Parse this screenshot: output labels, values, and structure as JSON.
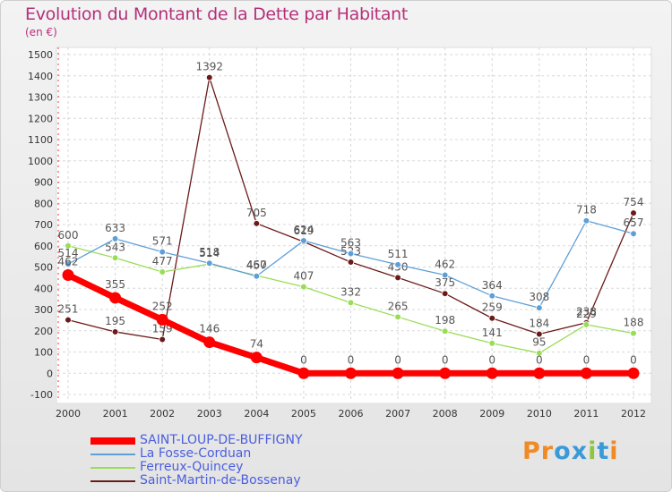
{
  "chart_data": {
    "type": "line",
    "title": "Evolution du Montant de la Dette par Habitant",
    "subtitle": "(en €)",
    "xlabel": "",
    "ylabel": "",
    "x": [
      "2000",
      "2001",
      "2002",
      "2003",
      "2004",
      "2005",
      "2006",
      "2007",
      "2008",
      "2009",
      "2010",
      "2011",
      "2012"
    ],
    "ylim": [
      -100,
      1500
    ],
    "yticks": [
      -100,
      0,
      100,
      200,
      300,
      400,
      500,
      600,
      700,
      800,
      900,
      1000,
      1100,
      1200,
      1300,
      1400,
      1500
    ],
    "grid": true,
    "legend_position": "bottom-left",
    "series": [
      {
        "name": "SAINT-LOUP-DE-BUFFIGNY",
        "color": "#ff0000",
        "values": [
          462,
          355,
          252,
          146,
          74,
          0,
          0,
          0,
          0,
          0,
          0,
          0,
          0
        ]
      },
      {
        "name": "La Fosse-Corduan",
        "color": "#5f9fd7",
        "values": [
          514,
          633,
          571,
          518,
          457,
          624,
          563,
          511,
          462,
          364,
          308,
          718,
          657
        ]
      },
      {
        "name": "Ferreux-Quincey",
        "color": "#99dd55",
        "values": [
          600,
          543,
          477,
          514,
          460,
          407,
          332,
          265,
          198,
          141,
          95,
          229,
          188
        ]
      },
      {
        "name": "Saint-Martin-de-Bossenay",
        "color": "#6b1a1a",
        "values": [
          251,
          195,
          159,
          1392,
          705,
          619,
          523,
          450,
          375,
          259,
          184,
          238,
          754
        ]
      }
    ]
  },
  "brand": {
    "text": "Proxiti",
    "colors": [
      "#f08a24",
      "#f08a24",
      "#3a9ad9",
      "#3a9ad9",
      "#8cc63f",
      "#3a9ad9",
      "#f08a24"
    ]
  }
}
